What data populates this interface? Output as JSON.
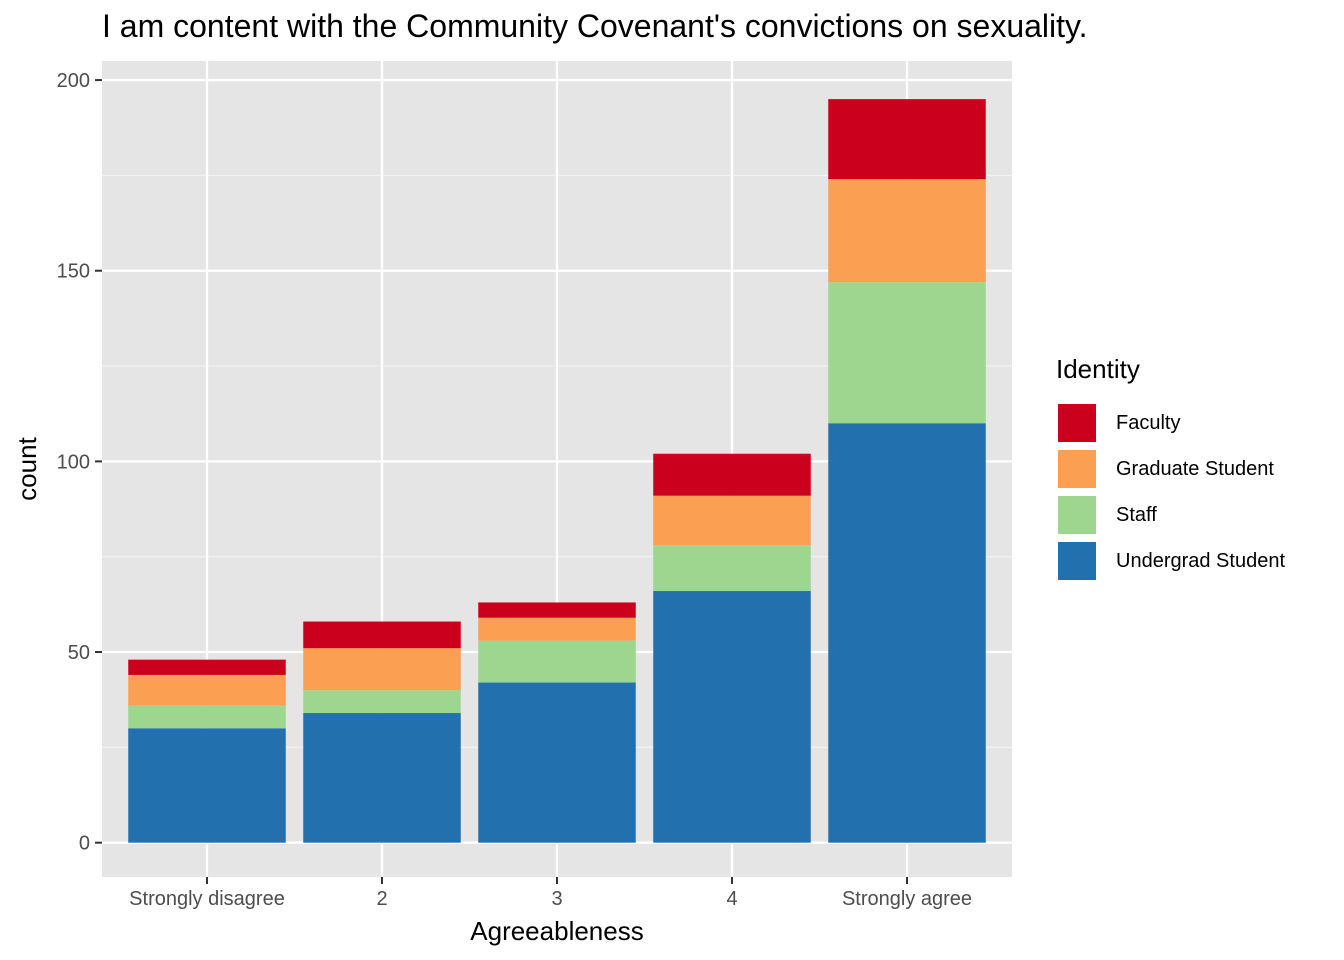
{
  "chart_data": {
    "type": "bar",
    "stacked": true,
    "title": "I am content with the Community Covenant's convictions on sexuality.",
    "xlabel": "Agreeableness",
    "ylabel": "count",
    "categories": [
      "Strongly disagree",
      "2",
      "3",
      "4",
      "Strongly agree"
    ],
    "ylim": [
      -9,
      205
    ],
    "yticks": [
      0,
      50,
      100,
      150,
      200
    ],
    "grid": true,
    "legend": {
      "title": "Identity",
      "position": "right"
    },
    "series": [
      {
        "name": "Undergrad Student",
        "color": "#2271AE",
        "values": [
          30,
          34,
          42,
          66,
          110
        ]
      },
      {
        "name": "Staff",
        "color": "#9DD78F",
        "values": [
          6,
          6,
          11,
          12,
          37
        ]
      },
      {
        "name": "Graduate Student",
        "color": "#FB9F53",
        "values": [
          8,
          11,
          6,
          13,
          27
        ]
      },
      {
        "name": "Faculty",
        "color": "#CB001C",
        "values": [
          4,
          7,
          4,
          11,
          21
        ]
      }
    ]
  }
}
